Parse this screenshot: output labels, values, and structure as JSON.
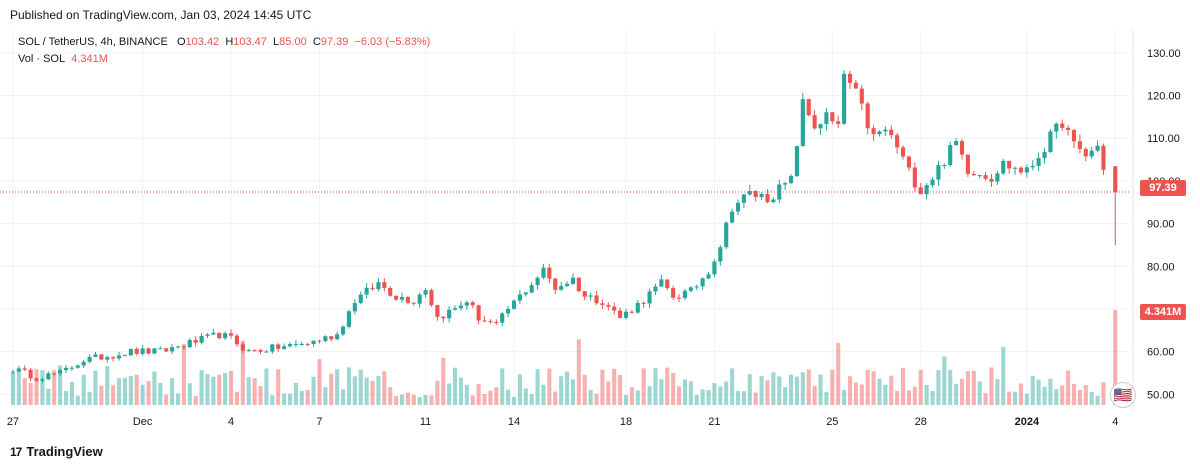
{
  "header": {
    "published": "Published on TradingView.com, Jan 03, 2024 14:45 UTC"
  },
  "legend": {
    "symbol": "SOL / TetherUS, 4h, BINANCE",
    "o_label": "O",
    "o_value": "103.42",
    "h_label": "H",
    "h_value": "103.47",
    "l_label": "L",
    "l_value": "85.00",
    "c_label": "C",
    "c_value": "97.39",
    "change": "−6.03 (−5.83%)",
    "vol_label": "Vol · SOL",
    "vol_value": "4.341M"
  },
  "price_tag": "97.39",
  "volume_tag": "4.341M",
  "brand": {
    "logo": "17",
    "name": "TradingView"
  },
  "colors": {
    "up": "#26a69a",
    "down": "#ef5350",
    "grid": "#f0f3fa",
    "price_line": "#ef5350"
  },
  "chart_data": {
    "type": "candlestick",
    "y_ticks": [
      "50.00",
      "60.00",
      "70.00",
      "80.00",
      "90.00",
      "100.00",
      "110.00",
      "120.00",
      "130.00"
    ],
    "y_tick_values": [
      50,
      60,
      70,
      80,
      90,
      100,
      110,
      120,
      130
    ],
    "ylim": [
      47.5,
      133
    ],
    "x_ticks": [
      "27",
      "Dec",
      "4",
      "7",
      "11",
      "14",
      "18",
      "21",
      "25",
      "28",
      "2024",
      "4"
    ],
    "x_tick_index": [
      0,
      22,
      37,
      52,
      70,
      85,
      104,
      119,
      139,
      154,
      172,
      187
    ],
    "x_count": 190,
    "last_price": 97.39,
    "anchors": [
      [
        0,
        56
      ],
      [
        4,
        54
      ],
      [
        8,
        55
      ],
      [
        12,
        58
      ],
      [
        16,
        59
      ],
      [
        20,
        60
      ],
      [
        25,
        60
      ],
      [
        30,
        62
      ],
      [
        35,
        64
      ],
      [
        37,
        63
      ],
      [
        40,
        60
      ],
      [
        45,
        61
      ],
      [
        50,
        62
      ],
      [
        55,
        64
      ],
      [
        58,
        72
      ],
      [
        62,
        76
      ],
      [
        65,
        73
      ],
      [
        68,
        72
      ],
      [
        70,
        75
      ],
      [
        72,
        68
      ],
      [
        75,
        70
      ],
      [
        77,
        72
      ],
      [
        79,
        68
      ],
      [
        82,
        66
      ],
      [
        84,
        70
      ],
      [
        86,
        73
      ],
      [
        88,
        76
      ],
      [
        90,
        79
      ],
      [
        92,
        75
      ],
      [
        95,
        77
      ],
      [
        97,
        73
      ],
      [
        100,
        72
      ],
      [
        103,
        68
      ],
      [
        106,
        71
      ],
      [
        110,
        76
      ],
      [
        112,
        73
      ],
      [
        115,
        74
      ],
      [
        118,
        79
      ],
      [
        120,
        85
      ],
      [
        122,
        94
      ],
      [
        125,
        97
      ],
      [
        128,
        96
      ],
      [
        130,
        98
      ],
      [
        132,
        100
      ],
      [
        134,
        118
      ],
      [
        136,
        113
      ],
      [
        138,
        115
      ],
      [
        140,
        112
      ],
      [
        141,
        125
      ],
      [
        143,
        120
      ],
      [
        146,
        110
      ],
      [
        148,
        112
      ],
      [
        150,
        108
      ],
      [
        152,
        102
      ],
      [
        154,
        98
      ],
      [
        156,
        101
      ],
      [
        158,
        105
      ],
      [
        160,
        109
      ],
      [
        162,
        103
      ],
      [
        164,
        102
      ],
      [
        166,
        101
      ],
      [
        168,
        104
      ],
      [
        170,
        103
      ],
      [
        172,
        102
      ],
      [
        174,
        106
      ],
      [
        176,
        110
      ],
      [
        178,
        114
      ],
      [
        180,
        108
      ],
      [
        182,
        106
      ],
      [
        184,
        108
      ],
      [
        185,
        103.42
      ]
    ],
    "last_candle": {
      "o": 103.42,
      "h": 103.47,
      "l": 85.0,
      "c": 97.39
    },
    "volume": {
      "last": 4.341,
      "unit": "M"
    }
  }
}
